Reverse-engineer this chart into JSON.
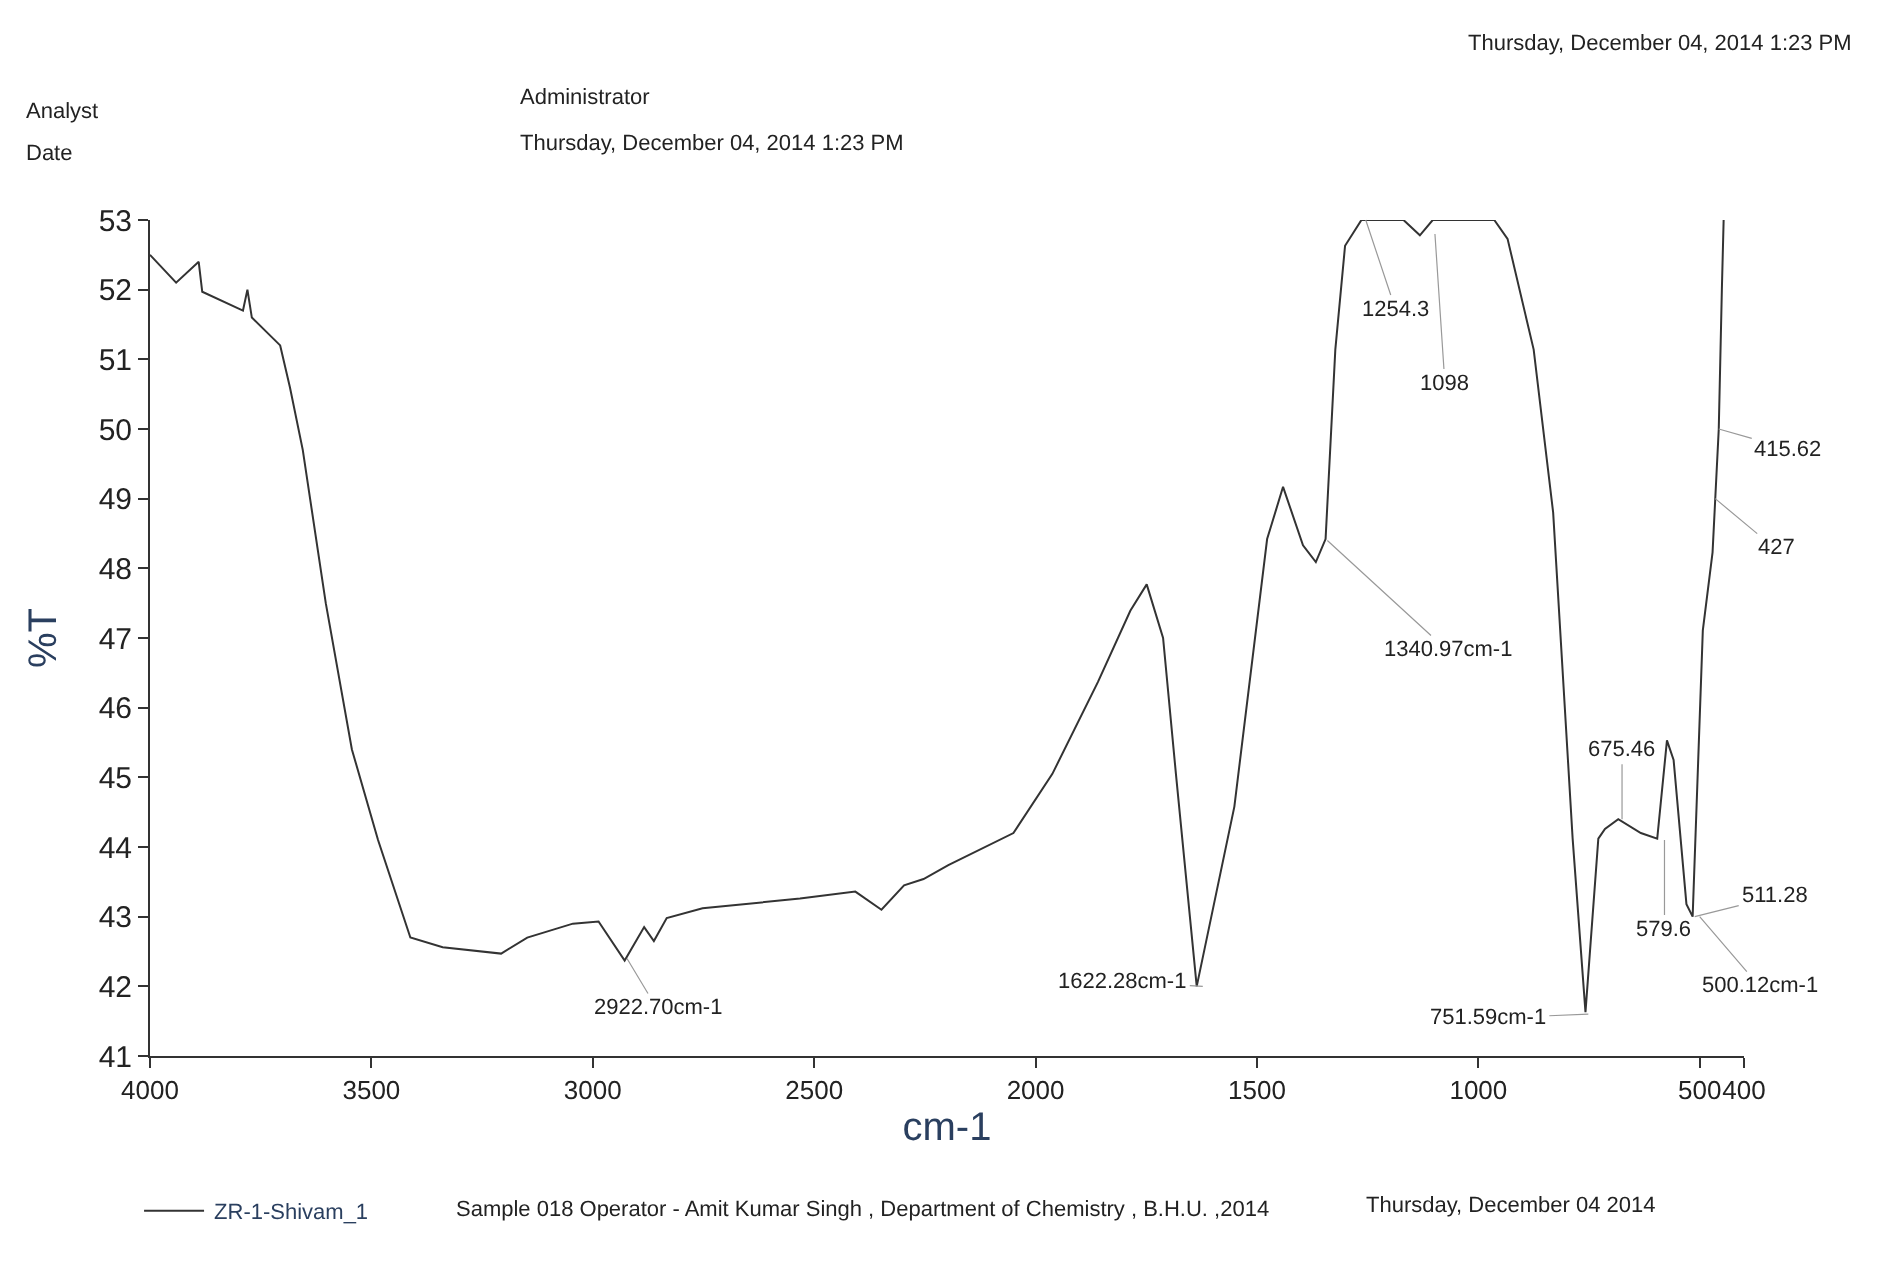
{
  "chart_data": {
    "type": "line",
    "annotations": [
      "Analyst",
      "Date",
      "Administrator",
      "Thursday, December 04, 2014 1:23 PM",
      "Thursday, December 04, 2014 1:23 PM",
      {
        "text": "2922.70cm-1",
        "x": 2922.7,
        "y": 42.4
      },
      {
        "text": "1622.28cm-1",
        "x": 1622.28,
        "y": 42.0
      },
      {
        "text": "1340.97cm-1",
        "x": 1340.97,
        "y": 48.4
      },
      {
        "text": "1254.3",
        "x": 1254.3,
        "y": 53.0
      },
      {
        "text": "1098",
        "x": 1098,
        "y": 52.8
      },
      {
        "text": "751.59cm-1",
        "x": 751.59,
        "y": 41.6
      },
      {
        "text": "675.46",
        "x": 675.46,
        "y": 44.4
      },
      {
        "text": "579.6",
        "x": 579.6,
        "y": 44.1
      },
      {
        "text": "511.28",
        "x": 511.28,
        "y": 43.0
      },
      {
        "text": "500.12cm-1",
        "x": 500.12,
        "y": 43.0
      },
      {
        "text": "415.62",
        "x": 457,
        "y": 50.0
      },
      {
        "text": "427",
        "x": 465,
        "y": 49.0
      },
      "Sample 018 Operator - Amit Kumar Singh , Department of Chemistry , B.H.U. ,2014",
      "Thursday, December 04 2014"
    ],
    "xlabel": "cm-1",
    "ylabel": "%T",
    "xlim": [
      4000,
      400
    ],
    "xticks": [
      4000,
      3500,
      3000,
      2500,
      2000,
      1500,
      1000,
      500,
      400
    ],
    "ylim": [
      41,
      53
    ],
    "yticks": [
      41,
      42,
      43,
      44,
      45,
      46,
      47,
      48,
      49,
      50,
      51,
      52,
      53
    ],
    "legend": "bottom",
    "marker": "none",
    "line_style": "solid",
    "series": [
      {
        "name": "ZR-1-Shivam_1",
        "color": "#333333",
        "x": [
          4000,
          3941,
          3890,
          3882,
          3790,
          3780,
          3770,
          3706,
          3684,
          3655,
          3603,
          3544,
          3485,
          3412,
          3339,
          3207,
          3148,
          3045,
          2987,
          2928,
          2884,
          2862,
          2833,
          2752,
          2532,
          2407,
          2348,
          2297,
          2253,
          2197,
          2050,
          1962,
          1859,
          1786,
          1749,
          1712,
          1683,
          1636,
          1551,
          1477,
          1441,
          1396,
          1367,
          1345,
          1323,
          1301,
          1264,
          1169,
          1132,
          1103,
          1081,
          964,
          934,
          875,
          831,
          787,
          758,
          729,
          714,
          684,
          633,
          596,
          574,
          559,
          530,
          516,
          493,
          471,
          457,
          450,
          446
        ],
        "values": [
          52.5,
          52.1,
          52.4,
          51.97,
          51.7,
          52.0,
          51.6,
          51.2,
          50.6,
          49.7,
          47.5,
          45.4,
          44.1,
          42.7,
          42.56,
          42.47,
          42.7,
          42.9,
          42.93,
          42.37,
          42.85,
          42.65,
          42.98,
          43.12,
          43.26,
          43.36,
          43.1,
          43.45,
          43.54,
          43.74,
          44.2,
          45.05,
          46.37,
          47.39,
          47.77,
          47.0,
          45.05,
          42.0,
          44.58,
          48.42,
          49.17,
          48.33,
          48.09,
          48.42,
          51.14,
          52.63,
          53.0,
          53.0,
          52.78,
          53.0,
          53.0,
          53.0,
          52.73,
          51.14,
          48.8,
          44.12,
          41.63,
          44.12,
          44.26,
          44.4,
          44.2,
          44.12,
          45.53,
          45.25,
          43.18,
          43.0,
          47.11,
          48.23,
          50.0,
          52.0,
          53.0
        ]
      }
    ]
  }
}
